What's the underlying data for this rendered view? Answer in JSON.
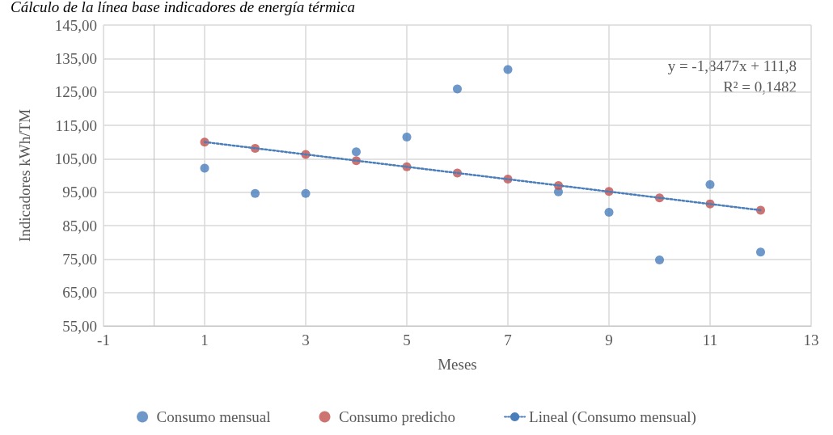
{
  "chart_data": {
    "type": "scatter",
    "title": "Cálculo de la línea base indicadores de energía térmica",
    "xlabel": "Meses",
    "ylabel": "Indicadores kWh/TM",
    "x": [
      1,
      2,
      3,
      4,
      5,
      6,
      7,
      8,
      9,
      10,
      11,
      12
    ],
    "series": [
      {
        "name": "Consumo mensual",
        "color": "#4a7ebb",
        "values": [
          102.2,
          94.6,
          94.6,
          107.1,
          111.5,
          125.9,
          131.7,
          95.1,
          89.0,
          74.7,
          97.3,
          77.1
        ]
      },
      {
        "name": "Consumo predicho",
        "color": "#c0504d",
        "values": [
          110.0,
          108.1,
          106.3,
          104.4,
          102.6,
          100.7,
          98.9,
          97.0,
          95.2,
          93.3,
          91.5,
          89.6
        ]
      },
      {
        "name": "Lineal (Consumo mensual)",
        "type": "line",
        "color": "#4a7ebb",
        "x": [
          1,
          12
        ],
        "values": [
          110.0,
          89.6
        ],
        "line_style": "dotted",
        "marker": "none"
      }
    ],
    "xlim": [
      -1,
      13
    ],
    "xticks": [
      -1,
      1,
      3,
      5,
      7,
      9,
      11,
      13
    ],
    "ylim": [
      55,
      145
    ],
    "yticks": [
      {
        "value": 55,
        "label": "55,00"
      },
      {
        "value": 65,
        "label": "65,00"
      },
      {
        "value": 75,
        "label": "75,00"
      },
      {
        "value": 85,
        "label": "85,00"
      },
      {
        "value": 95,
        "label": "95,00"
      },
      {
        "value": 105,
        "label": "105,00"
      },
      {
        "value": 115,
        "label": "115,00"
      },
      {
        "value": 125,
        "label": "125,00"
      },
      {
        "value": 135,
        "label": "135,00"
      },
      {
        "value": 145,
        "label": "145,00"
      }
    ],
    "annotations": [
      "y = -1,8477x + 111,8",
      "R² = 0,1482"
    ],
    "grid": true,
    "legend": "bottom",
    "marker": "circle"
  }
}
